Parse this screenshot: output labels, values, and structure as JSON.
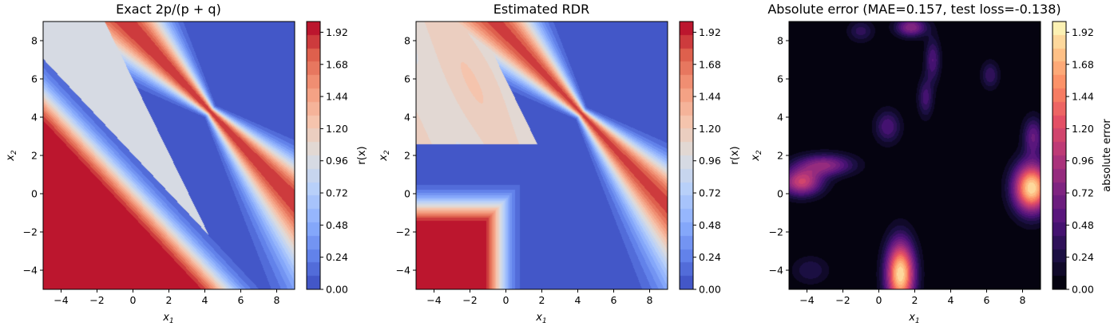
{
  "figure": {
    "panels": [
      {
        "title": "Exact 2p/(p + q)",
        "xlabel": "x",
        "xlabel_sub": "1",
        "ylabel": "x",
        "ylabel_sub": "2",
        "colorbar_label": "r(x)",
        "colormap": "coolwarm"
      },
      {
        "title": "Estimated RDR",
        "xlabel": "x",
        "xlabel_sub": "1",
        "ylabel": "x",
        "ylabel_sub": "2",
        "colorbar_label": "r(x)",
        "colormap": "coolwarm"
      },
      {
        "title": "Absolute error (MAE=0.157, test loss=-0.138)",
        "xlabel": "x",
        "xlabel_sub": "1",
        "ylabel": "x",
        "ylabel_sub": "2",
        "colorbar_label": "absolute error",
        "colormap": "magma"
      }
    ],
    "colors": {
      "coolwarm_low": "#3b4cc0",
      "coolwarm_mid": "#dddddd",
      "coolwarm_high": "#b40426",
      "magma_low": "#000004",
      "magma_mid": "#b73779",
      "magma_high": "#fcfdbf"
    }
  },
  "chart_data": [
    {
      "type": "heatmap",
      "title": "Exact 2p/(p + q)",
      "xlabel": "x1",
      "ylabel": "x2",
      "xlim": [
        -5,
        9
      ],
      "ylim": [
        -5,
        9
      ],
      "x_ticks": [
        -4,
        -2,
        0,
        2,
        4,
        6,
        8
      ],
      "y_ticks": [
        -4,
        -2,
        0,
        2,
        4,
        6,
        8
      ],
      "colorbar": {
        "label": "r(x)",
        "range": [
          0.0,
          2.0
        ],
        "ticks": [
          "0.00",
          "0.24",
          "0.48",
          "0.72",
          "0.96",
          "1.20",
          "1.44",
          "1.68",
          "1.92"
        ]
      },
      "regions": [
        {
          "description": "light grey plateau, top-left",
          "value": 1.0
        },
        {
          "description": "red band along the upper diagonal edge",
          "value": 1.9
        },
        {
          "description": "red lower-left corner",
          "value": 1.95
        },
        {
          "description": "blue band through the middle",
          "value": 0.0
        }
      ]
    },
    {
      "type": "heatmap",
      "title": "Estimated RDR",
      "xlabel": "x1",
      "ylabel": "x2",
      "xlim": [
        -5,
        9
      ],
      "ylim": [
        -5,
        9
      ],
      "x_ticks": [
        -4,
        -2,
        0,
        2,
        4,
        6,
        8
      ],
      "y_ticks": [
        -4,
        -2,
        0,
        2,
        4,
        6,
        8
      ],
      "colorbar": {
        "label": "r(x)",
        "range": [
          0.0,
          2.0
        ],
        "ticks": [
          "0.00",
          "0.24",
          "0.48",
          "0.72",
          "0.96",
          "1.20",
          "1.44",
          "1.68",
          "1.92"
        ]
      },
      "regions": [
        {
          "description": "light / pale-orange plateau, top-left",
          "value": 1.1
        },
        {
          "description": "red band along the upper diagonal edge",
          "value": 1.85
        },
        {
          "description": "red lower-left corner",
          "value": 1.95
        },
        {
          "description": "blue band through the middle",
          "value": 0.05
        }
      ]
    },
    {
      "type": "heatmap",
      "title": "Absolute error (MAE=0.157, test loss=-0.138)",
      "xlabel": "x1",
      "ylabel": "x2",
      "xlim": [
        -5,
        9
      ],
      "ylim": [
        -5,
        9
      ],
      "x_ticks": [
        -4,
        -2,
        0,
        2,
        4,
        6,
        8
      ],
      "y_ticks": [
        -4,
        -2,
        0,
        2,
        4,
        6,
        8
      ],
      "colorbar": {
        "label": "absolute error",
        "range": [
          0.0,
          2.0
        ],
        "ticks": [
          "0.00",
          "0.24",
          "0.48",
          "0.72",
          "0.96",
          "1.20",
          "1.44",
          "1.68",
          "1.92"
        ]
      },
      "MAE": 0.157,
      "test_loss": -0.138,
      "hotspots": [
        {
          "x1": 1.2,
          "x2": -4.2,
          "error": 1.9
        },
        {
          "x1": 8.5,
          "x2": 0.2,
          "error": 1.9
        },
        {
          "x1": -4.3,
          "x2": 0.6,
          "error": 1.1
        },
        {
          "x1": -3.0,
          "x2": 1.5,
          "error": 0.8
        },
        {
          "x1": 1.8,
          "x2": 8.7,
          "error": 0.8
        },
        {
          "x1": 8.6,
          "x2": 3.0,
          "error": 0.6
        },
        {
          "x1": 3.0,
          "x2": 7.0,
          "error": 0.5
        },
        {
          "x1": 6.2,
          "x2": 6.2,
          "error": 0.4
        }
      ]
    }
  ]
}
